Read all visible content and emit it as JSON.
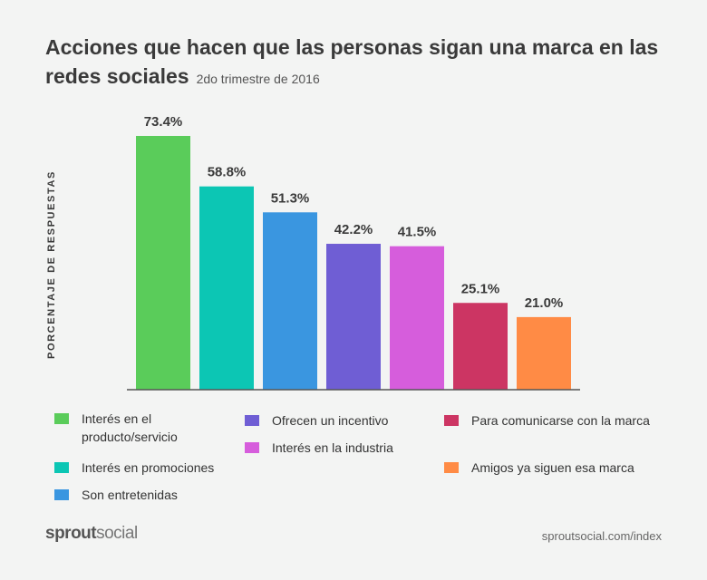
{
  "header": {
    "title": "Acciones que hacen que las personas sigan una marca en las redes sociales",
    "subtitle": "2do trimestre de 2016"
  },
  "chart_data": {
    "type": "bar",
    "title": "Acciones que hacen que las personas sigan una marca en las redes sociales",
    "subtitle": "2do trimestre de 2016",
    "xlabel": "",
    "ylabel": "PORCENTAJE DE RESPUESTAS",
    "ylim": [
      0,
      80
    ],
    "grid": false,
    "categories": [
      "Interés en el producto/servicio",
      "Interés en promociones",
      "Son entretenidas",
      "Ofrecen un incentivo",
      "Interés en la industria",
      "Para comunicarse con la marca",
      "Amigos ya siguen esa marca"
    ],
    "values": [
      73.4,
      58.8,
      51.3,
      42.2,
      41.5,
      25.1,
      21.0
    ],
    "value_labels": [
      "73.4%",
      "58.8%",
      "51.3%",
      "42.2%",
      "41.5%",
      "25.1%",
      "21.0%"
    ],
    "colors": [
      "#5acc5a",
      "#0cc6b4",
      "#3a96e0",
      "#6f5ed4",
      "#d65ddc",
      "#cc3563",
      "#ff8b45"
    ],
    "legend_position": "bottom"
  },
  "legend": {
    "items": [
      "Interés en el producto/servicio",
      "Interés en promociones",
      "Son entretenidas",
      "Ofrecen un incentivo",
      "Interés en la industria",
      "Para comunicarse con la marca",
      "Amigos ya siguen esa marca"
    ]
  },
  "footer": {
    "brand_bold": "sprout",
    "brand_light": "social",
    "url": "sproutsocial.com/index"
  }
}
